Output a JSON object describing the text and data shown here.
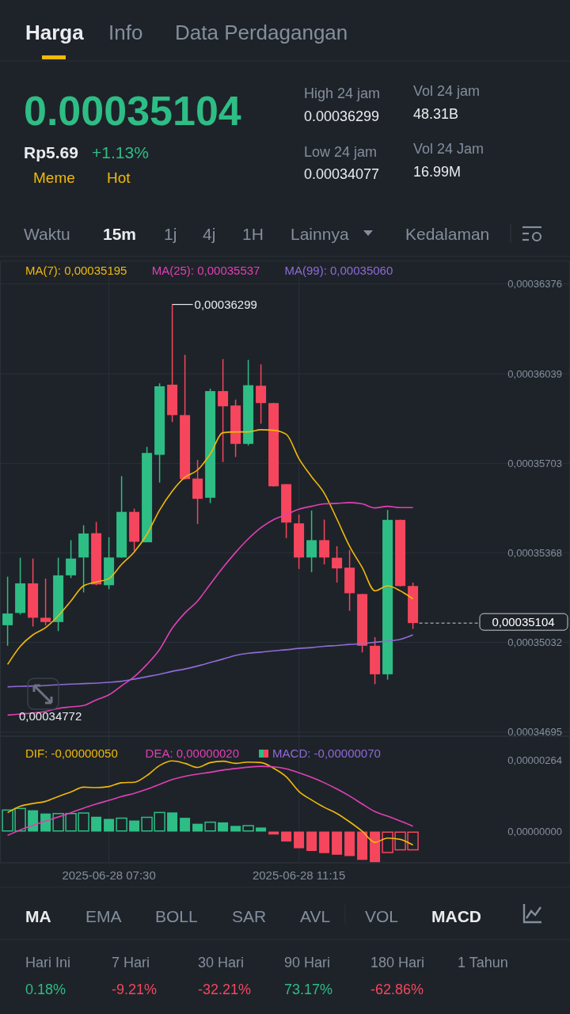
{
  "chart_data": [
    {
      "type": "other",
      "annotations": [
        "Harga",
        "Info",
        "Data Perdagangan",
        "0.00035104",
        "Rp5.69",
        "+1.13%",
        "Meme",
        "Hot",
        "High 24 jam",
        "0.00036299",
        "Low 24 jam",
        "0.00034077",
        "Vol 24 jam",
        "48.31B",
        "Vol 24 Jam",
        "16.99M",
        "Waktu",
        "15m",
        "1j",
        "4j",
        "1H",
        "Lainnya",
        "Kedalaman"
      ]
    },
    {
      "type": "candlestick",
      "x": [
        "2025-06-28T05:30",
        "2025-06-28T05:45",
        "2025-06-28T06:00",
        "2025-06-28T06:15",
        "2025-06-28T06:30",
        "2025-06-28T06:45",
        "2025-06-28T07:00",
        "2025-06-28T07:15",
        "2025-06-28T07:30",
        "2025-06-28T07:45",
        "2025-06-28T08:00",
        "2025-06-28T08:15",
        "2025-06-28T08:30",
        "2025-06-28T08:45",
        "2025-06-28T09:00",
        "2025-06-28T09:15",
        "2025-06-28T09:30",
        "2025-06-28T09:45",
        "2025-06-28T10:00",
        "2025-06-28T10:15",
        "2025-06-28T10:30",
        "2025-06-28T10:45",
        "2025-06-28T11:00",
        "2025-06-28T11:15",
        "2025-06-28T11:30",
        "2025-06-28T11:45",
        "2025-06-28T12:00",
        "2025-06-28T12:15",
        "2025-06-28T12:30",
        "2025-06-28T12:45",
        "2025-06-28T13:00",
        "2025-06-28T13:15",
        "2025-06-28T13:30"
      ],
      "ohlc": [
        [
          0.00035096,
          0.00035278,
          0.00035019,
          0.0003514
        ],
        [
          0.00035142,
          0.00035349,
          0.00035136,
          0.00035253
        ],
        [
          0.00035253,
          0.00035346,
          0.00035091,
          0.00035124
        ],
        [
          0.00035124,
          0.00035271,
          0.00035096,
          0.00035108
        ],
        [
          0.00035108,
          0.00035349,
          0.00035074,
          0.00035283
        ],
        [
          0.00035283,
          0.00035415,
          0.00035273,
          0.00035346
        ],
        [
          0.0003535,
          0.00035471,
          0.00035219,
          0.0003544
        ],
        [
          0.00035441,
          0.00035483,
          0.00035246,
          0.00035249
        ],
        [
          0.00035246,
          0.00035426,
          0.00035231,
          0.0003535
        ],
        [
          0.0003535,
          0.00035655,
          0.00035349,
          0.00035521
        ],
        [
          0.00035521,
          0.00035533,
          0.00035375,
          0.00035409
        ],
        [
          0.00035407,
          0.00035765,
          0.00035407,
          0.00035742
        ],
        [
          0.00035735,
          0.00036003,
          0.00035631,
          0.00035992
        ],
        [
          0.00035998,
          0.00036299,
          0.00035858,
          0.00035884
        ],
        [
          0.00035884,
          0.0003611,
          0.00035642,
          0.00035644
        ],
        [
          0.00035646,
          0.00035716,
          0.00035476,
          0.0003557
        ],
        [
          0.00035574,
          0.00035983,
          0.00035554,
          0.00035974
        ],
        [
          0.00035974,
          0.00036094,
          0.00035708,
          0.00035917
        ],
        [
          0.0003592,
          0.00035942,
          0.00035727,
          0.00035776
        ],
        [
          0.00035776,
          0.00036091,
          0.0003577,
          0.00035996
        ],
        [
          0.00035994,
          0.00036074,
          0.00035852,
          0.00035929
        ],
        [
          0.00035929,
          0.0003593,
          0.00035616,
          0.00035617
        ],
        [
          0.00035625,
          0.00035625,
          0.00035423,
          0.00035481
        ],
        [
          0.00035478,
          0.00035511,
          0.00035307,
          0.0003535
        ],
        [
          0.0003535,
          0.00035526,
          0.00035295,
          0.00035415
        ],
        [
          0.00035415,
          0.00035492,
          0.00035324,
          0.0003535
        ],
        [
          0.00035349,
          0.00035392,
          0.00035256,
          0.00035309
        ],
        [
          0.00035312,
          0.00035378,
          0.0003515,
          0.00035216
        ],
        [
          0.00035213,
          0.00035213,
          0.00034994,
          0.00035019
        ],
        [
          0.00035019,
          0.00035051,
          0.00034875,
          0.00034912
        ],
        [
          0.00034912,
          0.00035528,
          0.00034892,
          0.00035491
        ],
        [
          0.00035491,
          0.00035492,
          0.00035241,
          0.00035243
        ],
        [
          0.00035243,
          0.00035256,
          0.00035082,
          0.00035104
        ]
      ],
      "series": [
        {
          "name": "MA(7): 0,00035195",
          "type": "line",
          "color": "#f0b90b",
          "values": [
            0.00034949,
            0.00035017,
            0.0003506,
            0.00035087,
            0.00035131,
            0.00035187,
            0.00035244,
            0.00035258,
            0.00035271,
            0.00035324,
            0.00035371,
            0.00035437,
            0.00035528,
            0.00035599,
            0.00035651,
            0.00035678,
            0.00035738,
            0.00035818,
            0.00035821,
            0.00035821,
            0.00035829,
            0.00035827,
            0.00035812,
            0.00035721,
            0.00035653,
            0.00035591,
            0.00035494,
            0.00035392,
            0.00035312,
            0.00035225,
            0.00035244,
            0.00035225,
            0.00035195
          ]
        },
        {
          "name": "MA(25): 0,00035537",
          "type": "line",
          "color": "#e040b5",
          "values": [
            0.00034759,
            0.00034763,
            0.00034767,
            0.00034773,
            0.00034784,
            0.0003479,
            0.00034795,
            0.00034816,
            0.00034835,
            0.00034869,
            0.00034903,
            0.00034949,
            0.00035005,
            0.00035085,
            0.00035142,
            0.00035187,
            0.0003525,
            0.00035312,
            0.00035369,
            0.0003542,
            0.00035462,
            0.00035492,
            0.00035511,
            0.00035531,
            0.00035542,
            0.00035551,
            0.00035553,
            0.00035556,
            0.00035551,
            0.00035536,
            0.00035542,
            0.00035537,
            0.00035537
          ]
        },
        {
          "name": "MA(99): 0,00035060",
          "type": "line",
          "color": "#8f6ad8",
          "values": [
            0.00034865,
            0.00034867,
            0.00034868,
            0.0003487,
            0.00034873,
            0.00034875,
            0.00034877,
            0.00034879,
            0.00034882,
            0.00034886,
            0.00034894,
            0.00034903,
            0.00034912,
            0.00034923,
            0.00034932,
            0.00034943,
            0.00034956,
            0.00034969,
            0.00034983,
            0.00034991,
            0.00034995,
            0.00035,
            0.00035004,
            0.00035009,
            0.00035012,
            0.00035017,
            0.0003502,
            0.00035024,
            0.00035027,
            0.00035032,
            0.00035037,
            0.00035043,
            0.0003506
          ]
        }
      ],
      "xlim": [
        "2025-06-28T05:21",
        "2025-06-28T16:36"
      ],
      "xticks": [
        {
          "value": "2025-06-28T07:30",
          "label": null
        },
        {
          "value": "2025-06-28T11:15",
          "label": null
        }
      ],
      "ylim": [
        0.0003468,
        0.00036461
      ],
      "yticks": [
        {
          "value": 0.00036376,
          "label": "0,00036376"
        },
        {
          "value": 0.00036039,
          "label": "0,00036039"
        },
        {
          "value": 0.00035703,
          "label": "0,00035703"
        },
        {
          "value": 0.00035368,
          "label": "0,00035368"
        },
        {
          "value": 0.00035032,
          "label": "0,00035032"
        },
        {
          "value": 0.00034695,
          "label": "0,00034695"
        }
      ],
      "tick_labels": "y",
      "grid": true,
      "legend": "top left",
      "ref_lines": [
        {
          "axis": "y",
          "value": 0.00035104,
          "label": "0,00035104",
          "color": "#c8ccd2",
          "line_style": "dashed"
        }
      ],
      "annotations": [
        {
          "text": "0,00036299",
          "x": "2025-06-28T08:45",
          "y": 0.00036299
        },
        "0,00034772"
      ]
    },
    {
      "type": "bar",
      "x": [
        "2025-06-28T05:30",
        "2025-06-28T05:45",
        "2025-06-28T06:00",
        "2025-06-28T06:15",
        "2025-06-28T06:30",
        "2025-06-28T06:45",
        "2025-06-28T07:00",
        "2025-06-28T07:15",
        "2025-06-28T07:30",
        "2025-06-28T07:45",
        "2025-06-28T08:00",
        "2025-06-28T08:15",
        "2025-06-28T08:30",
        "2025-06-28T08:45",
        "2025-06-28T09:00",
        "2025-06-28T09:15",
        "2025-06-28T09:30",
        "2025-06-28T09:45",
        "2025-06-28T10:00",
        "2025-06-28T10:15",
        "2025-06-28T10:30",
        "2025-06-28T10:45",
        "2025-06-28T11:00",
        "2025-06-28T11:15",
        "2025-06-28T11:30",
        "2025-06-28T11:45",
        "2025-06-28T12:00",
        "2025-06-28T12:15",
        "2025-06-28T12:30",
        "2025-06-28T12:45",
        "2025-06-28T13:00",
        "2025-06-28T13:15",
        "2025-06-28T13:30"
      ],
      "series": [
        {
          "name": "DIF: -0,00000050",
          "type": "line",
          "color": "#f0b90b",
          "values": [
            7e-07,
            9.4e-07,
            1.04e-06,
            1.12e-06,
            1.3e-06,
            1.47e-06,
            1.65e-06,
            1.63e-06,
            1.67e-06,
            1.81e-06,
            1.83e-06,
            2.08e-06,
            2.45e-06,
            2.62e-06,
            2.53e-06,
            2.38e-06,
            2.56e-06,
            2.61e-06,
            2.53e-06,
            2.58e-06,
            2.56e-06,
            2.35e-06,
            2.03e-06,
            1.49e-06,
            1.17e-06,
            9e-07,
            6.7e-07,
            3.6e-07,
            1e-08,
            -4e-07,
            -2.4e-07,
            -2.9e-07,
            -5e-07
          ]
        },
        {
          "name": "DEA: 0,00000020",
          "type": "line",
          "color": "#e040b5",
          "values": [
            -1.4e-07,
            6e-08,
            2.3e-07,
            3.9e-07,
            5.4e-07,
            7e-07,
            8.7e-07,
            1.02e-06,
            1.16e-06,
            1.3e-06,
            1.42e-06,
            1.57e-06,
            1.75e-06,
            1.93e-06,
            2.05e-06,
            2.13e-06,
            2.2e-06,
            2.28e-06,
            2.34e-06,
            2.39e-06,
            2.42e-06,
            2.4e-06,
            2.33e-06,
            2.18e-06,
            2.01e-06,
            1.81e-06,
            1.58e-06,
            1.32e-06,
            1.02e-06,
            7.4e-07,
            5.7e-07,
            3.9e-07,
            2e-07
          ]
        },
        {
          "name": "MACD: -0,00000070",
          "type": "bar",
          "color": "#8f6ad8",
          "colors": [
            "#2ebd85",
            "#2ebd85",
            "#2ebd85",
            "#2ebd85",
            "#2ebd85",
            "#2ebd85",
            "#2ebd85",
            "#2ebd85",
            "#2ebd85",
            "#2ebd85",
            "#2ebd85",
            "#2ebd85",
            "#2ebd85",
            "#2ebd85",
            "#2ebd85",
            "#2ebd85",
            "#2ebd85",
            "#2ebd85",
            "#2ebd85",
            "#2ebd85",
            "#2ebd85",
            "#f6465d",
            "#f6465d",
            "#f6465d",
            "#f6465d",
            "#f6465d",
            "#f6465d",
            "#f6465d",
            "#f6465d",
            "#f6465d",
            "#f6465d",
            "#f6465d",
            "#f6465d"
          ],
          "values": [
            8.2e-07,
            8.8e-07,
            7.9e-07,
            6.7e-07,
            6.9e-07,
            6.9e-07,
            7.1e-07,
            5.5e-07,
            4.7e-07,
            5.2e-07,
            4.1e-07,
            5.5e-07,
            7.3e-07,
            7.1e-07,
            5.1e-07,
            2.9e-07,
            3.7e-07,
            3.4e-07,
            2.1e-07,
            2.4e-07,
            1.5e-07,
            -1.1e-07,
            -3.7e-07,
            -6.2e-07,
            -7.2e-07,
            -8e-07,
            -8.6e-07,
            -9.1e-07,
            -1.05e-06,
            -1.14e-06,
            -8e-07,
            -7e-07,
            -7e-07
          ]
        }
      ],
      "xlim": [
        "2025-06-28T05:21",
        "2025-06-28T16:36"
      ],
      "xticks": [
        {
          "value": "2025-06-28T07:30",
          "label": "2025-06-28 07:30"
        },
        {
          "value": "2025-06-28T11:15",
          "label": "2025-06-28 11:15"
        }
      ],
      "ylim": [
        -1.16e-06,
        3.54e-06
      ],
      "yticks": [
        {
          "value": 2.64e-06,
          "label": "0,00000264"
        },
        {
          "value": 0,
          "label": "0,00000000"
        }
      ],
      "grid": "x",
      "legend": "top"
    },
    {
      "type": "other",
      "annotations": [
        "MA",
        "EMA",
        "BOLL",
        "SAR",
        "AVL",
        "VOL",
        "MACD",
        "Hari Ini",
        "7 Hari",
        "30 Hari",
        "90 Hari",
        "180 Hari",
        "1 Tahun",
        "0.18%",
        "-9.21%",
        "-32.21%",
        "73.17%",
        "-62.86%"
      ]
    }
  ]
}
